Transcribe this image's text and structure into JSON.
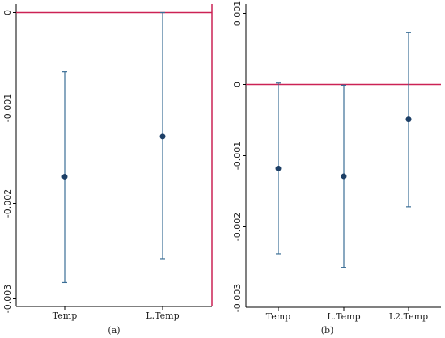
{
  "chart_data": [
    {
      "type": "scatter",
      "subtype": "coefficient-plot-with-confidence-intervals",
      "caption": "(a)",
      "categories": [
        "Temp",
        "L.Temp"
      ],
      "estimates": [
        -0.00172,
        -0.0013
      ],
      "ci_low": [
        -0.00283,
        -0.00258
      ],
      "ci_high": [
        -0.00062,
        0.0
      ],
      "ylim": [
        -0.0031,
        0.0
      ],
      "yticks": [
        0,
        -0.001,
        -0.002,
        -0.003
      ],
      "ytick_labels": [
        "0",
        "-0.001",
        "-0.002",
        "-0.003"
      ],
      "reference_line_y": 0,
      "colors": {
        "point": "#1d3f66",
        "ci": "#3b6e96",
        "reference": "#cc2255"
      }
    },
    {
      "type": "scatter",
      "subtype": "coefficient-plot-with-confidence-intervals",
      "caption": "(b)",
      "categories": [
        "Temp",
        "L.Temp",
        "L2.Temp"
      ],
      "estimates": [
        -0.00118,
        -0.00129,
        -0.00049
      ],
      "ci_low": [
        -0.00238,
        -0.00257,
        -0.00172
      ],
      "ci_high": [
        2e-05,
        -1e-05,
        0.00073
      ],
      "ylim": [
        -0.0031,
        0.00113
      ],
      "yticks": [
        0.001,
        0,
        -0.001,
        -0.002,
        -0.003
      ],
      "ytick_labels": [
        "0.001",
        "0",
        "-0.001",
        "-0.002",
        "-0.003"
      ],
      "reference_line_y": 0,
      "colors": {
        "point": "#1d3f66",
        "ci": "#3b6e96",
        "reference": "#cc2255"
      }
    }
  ]
}
